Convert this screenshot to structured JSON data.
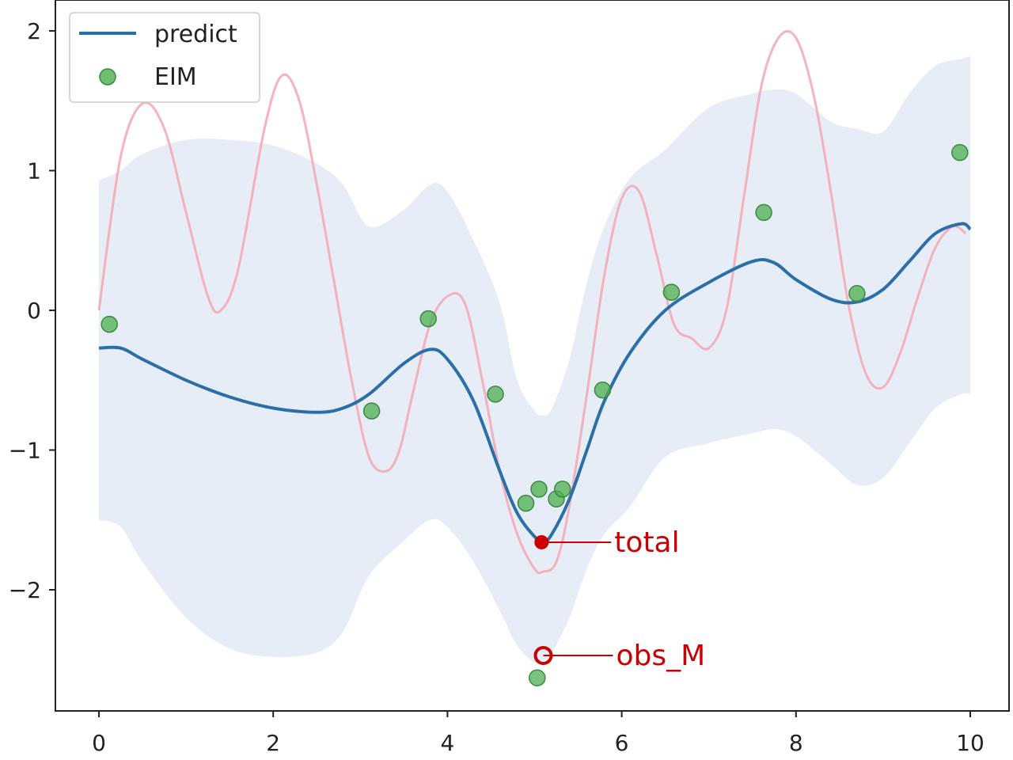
{
  "chart_data": {
    "type": "line",
    "xlim": [
      -0.5,
      10.3
    ],
    "ylim": [
      -2.9,
      2.2
    ],
    "x_ticks": [
      0,
      2,
      4,
      6,
      8,
      10
    ],
    "x_tick_labels": [
      "0",
      "2",
      "4",
      "6",
      "8",
      "10"
    ],
    "y_ticks": [
      -2,
      -1,
      0,
      1,
      2
    ],
    "y_tick_labels": [
      "−2",
      "−1",
      "0",
      "1",
      "2"
    ],
    "legend": {
      "placement": "top-left",
      "entries": [
        {
          "label": "predict",
          "kind": "line",
          "color": "#2a6fa8"
        },
        {
          "label": "EIM",
          "kind": "marker",
          "color": "#4caf50"
        }
      ]
    },
    "series": [
      {
        "name": "predict",
        "kind": "line",
        "color": "#2a6fa8",
        "x": [
          0,
          0.25,
          0.5,
          1,
          1.5,
          2,
          2.5,
          2.8,
          3.1,
          3.5,
          3.8,
          4.0,
          4.3,
          4.6,
          4.8,
          5.0,
          5.1,
          5.2,
          5.4,
          5.6,
          5.8,
          6.1,
          6.5,
          7.0,
          7.5,
          7.75,
          8.0,
          8.4,
          8.7,
          9.0,
          9.3,
          9.6,
          9.9,
          10.0
        ],
        "y": [
          -0.27,
          -0.27,
          -0.35,
          -0.5,
          -0.62,
          -0.7,
          -0.73,
          -0.7,
          -0.6,
          -0.38,
          -0.28,
          -0.35,
          -0.65,
          -1.15,
          -1.45,
          -1.62,
          -1.66,
          -1.6,
          -1.35,
          -1.0,
          -0.65,
          -0.3,
          0.0,
          0.2,
          0.35,
          0.34,
          0.22,
          0.08,
          0.06,
          0.15,
          0.35,
          0.55,
          0.62,
          0.58
        ]
      },
      {
        "name": "",
        "kind": "line",
        "color": "#f4a6b0",
        "x": [
          0,
          0.25,
          0.5,
          0.75,
          1.0,
          1.25,
          1.4,
          1.6,
          1.9,
          2.1,
          2.3,
          2.5,
          2.7,
          2.9,
          3.1,
          3.3,
          3.45,
          3.6,
          3.8,
          4.0,
          4.2,
          4.4,
          4.6,
          4.8,
          5.0,
          5.1,
          5.25,
          5.4,
          5.6,
          5.8,
          6.0,
          6.2,
          6.4,
          6.6,
          6.8,
          7.0,
          7.2,
          7.4,
          7.6,
          7.8,
          8.0,
          8.2,
          8.4,
          8.6,
          8.8,
          9.0,
          9.2,
          9.4,
          9.6,
          9.8,
          9.95
        ],
        "y": [
          0.0,
          1.1,
          1.48,
          1.3,
          0.7,
          0.1,
          0.0,
          0.3,
          1.3,
          1.68,
          1.5,
          0.9,
          0.2,
          -0.5,
          -1.05,
          -1.15,
          -1.0,
          -0.6,
          -0.1,
          0.1,
          0.05,
          -0.5,
          -1.15,
          -1.6,
          -1.85,
          -1.87,
          -1.8,
          -1.4,
          -0.6,
          0.25,
          0.8,
          0.85,
          0.4,
          -0.1,
          -0.2,
          -0.27,
          0.0,
          0.8,
          1.6,
          1.95,
          1.95,
          1.55,
          0.85,
          0.05,
          -0.45,
          -0.55,
          -0.3,
          0.1,
          0.45,
          0.6,
          0.55
        ]
      },
      {
        "name": "",
        "kind": "band",
        "color": "#dbe6f4",
        "x": [
          0,
          0.25,
          0.5,
          1,
          1.5,
          2,
          2.5,
          2.8,
          3.1,
          3.5,
          3.8,
          4.0,
          4.3,
          4.6,
          4.8,
          5.0,
          5.1,
          5.2,
          5.4,
          5.6,
          5.8,
          6.1,
          6.5,
          7.0,
          7.5,
          7.75,
          8.0,
          8.4,
          8.7,
          9.0,
          9.3,
          9.6,
          9.9,
          10.0
        ],
        "upper": [
          0.93,
          1.0,
          1.12,
          1.22,
          1.22,
          1.18,
          1.05,
          0.9,
          0.6,
          0.72,
          0.9,
          0.85,
          0.5,
          0.05,
          -0.5,
          -0.72,
          -0.75,
          -0.7,
          -0.35,
          0.2,
          0.6,
          0.95,
          1.15,
          1.45,
          1.55,
          1.58,
          1.55,
          1.35,
          1.3,
          1.28,
          1.55,
          1.75,
          1.8,
          1.82
        ],
        "lower": [
          -1.5,
          -1.55,
          -1.8,
          -2.2,
          -2.42,
          -2.48,
          -2.45,
          -2.3,
          -1.9,
          -1.65,
          -1.5,
          -1.55,
          -1.8,
          -2.15,
          -2.4,
          -2.52,
          -2.5,
          -2.45,
          -2.2,
          -1.85,
          -1.6,
          -1.4,
          -1.05,
          -0.95,
          -0.88,
          -0.85,
          -0.9,
          -1.1,
          -1.25,
          -1.2,
          -0.95,
          -0.7,
          -0.6,
          -0.6
        ]
      },
      {
        "name": "EIM",
        "kind": "scatter",
        "color": "#4caf50",
        "x": [
          0.12,
          3.13,
          3.78,
          4.55,
          4.9,
          5.03,
          5.05,
          5.25,
          5.32,
          5.78,
          6.57,
          7.63,
          8.7,
          9.88
        ],
        "y": [
          -0.1,
          -0.72,
          -0.06,
          -0.6,
          -1.38,
          -2.63,
          -1.28,
          -1.35,
          -1.28,
          -0.57,
          0.13,
          0.7,
          0.12,
          1.13
        ]
      }
    ],
    "annotations": [
      {
        "label": "total",
        "x": 5.08,
        "y": -1.66,
        "color": "#cc0000",
        "marker": "filled"
      },
      {
        "label": "obs_M",
        "x": 5.1,
        "y": -2.47,
        "color": "#cc0000",
        "marker": "ring"
      }
    ]
  }
}
